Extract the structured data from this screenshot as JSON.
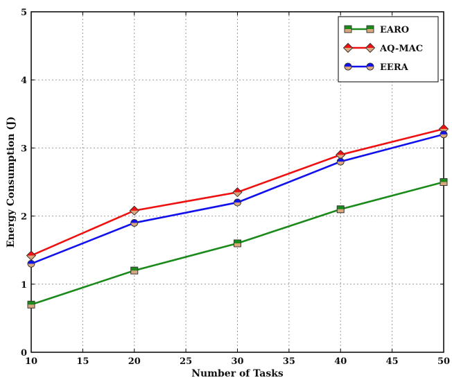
{
  "chart_data": {
    "type": "line",
    "title": "",
    "xlabel": "Number of Tasks",
    "ylabel": "Energy Consumption (J)",
    "x": [
      10,
      20,
      30,
      40,
      50
    ],
    "xlim": [
      10,
      50
    ],
    "ylim": [
      0,
      5
    ],
    "xticks": [
      "10",
      "15",
      "20",
      "25",
      "30",
      "35",
      "40",
      "45",
      "50"
    ],
    "yticks": [
      "0",
      "1",
      "2",
      "3",
      "4",
      "5"
    ],
    "grid": true,
    "legend_position": "top-right",
    "series": [
      {
        "name": "EARO",
        "values": [
          0.7,
          1.2,
          1.6,
          2.1,
          2.5
        ],
        "color": "#1a8a1a",
        "marker": "square"
      },
      {
        "name": "AQ-MAC",
        "values": [
          1.42,
          2.08,
          2.35,
          2.9,
          3.28
        ],
        "color": "#ee1111",
        "marker": "diamond"
      },
      {
        "name": "EERA",
        "values": [
          1.3,
          1.9,
          2.2,
          2.8,
          3.2
        ],
        "color": "#1111ee",
        "marker": "circle"
      }
    ],
    "marker_fill_lower": "#d9a67e"
  }
}
